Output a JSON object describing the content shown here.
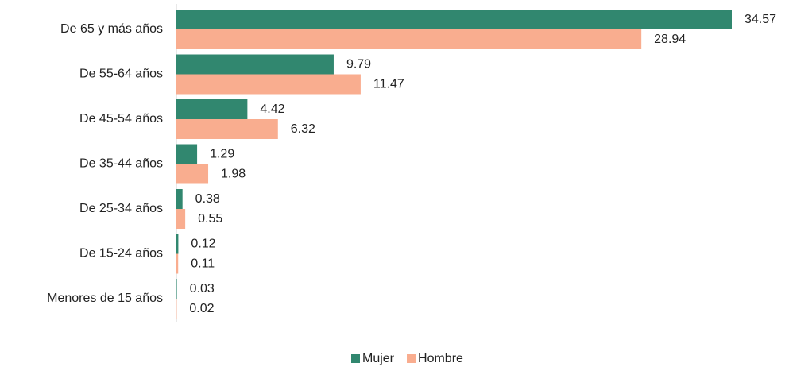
{
  "chart_data": {
    "type": "barh",
    "categories": [
      "De 65 y más años",
      "De 55-64 años",
      "De 45-54 años",
      "De 35-44 años",
      "De 25-34 años",
      "De 15-24 años",
      "Menores de 15 años"
    ],
    "series": [
      {
        "name": "Mujer",
        "color": "#31876f",
        "values": [
          34.57,
          9.79,
          4.42,
          1.29,
          0.38,
          0.12,
          0.03
        ]
      },
      {
        "name": "Hombre",
        "color": "#f9ad8f",
        "values": [
          28.94,
          11.47,
          6.32,
          1.98,
          0.55,
          0.11,
          0.02
        ]
      }
    ],
    "legend": "bottom"
  }
}
